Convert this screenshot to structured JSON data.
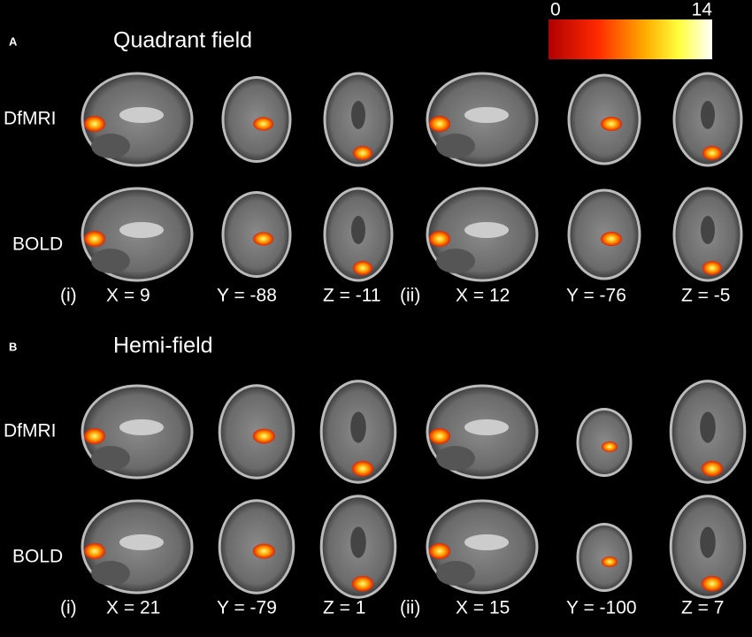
{
  "colorbar": {
    "min": 0,
    "max": 14
  },
  "panels": [
    {
      "letter": "A",
      "title": "Quadrant field",
      "rows": [
        "DfMRI",
        "BOLD"
      ],
      "sets": [
        {
          "label": "(i)",
          "coords": [
            "X = 9",
            "Y = -88",
            "Z = -11"
          ]
        },
        {
          "label": "(ii)",
          "coords": [
            "X = 12",
            "Y = -76",
            "Z = -5"
          ]
        }
      ]
    },
    {
      "letter": "B",
      "title": "Hemi-field",
      "rows": [
        "DfMRI",
        "BOLD"
      ],
      "sets": [
        {
          "label": "(i)",
          "coords": [
            "X = 21",
            "Y = -79",
            "Z = 1"
          ]
        },
        {
          "label": "(ii)",
          "coords": [
            "X = 15",
            "Y = -100",
            "Z = 7"
          ]
        }
      ]
    }
  ]
}
